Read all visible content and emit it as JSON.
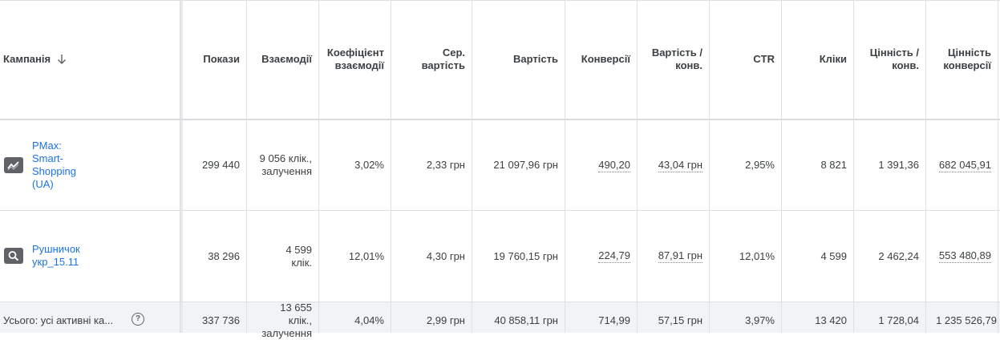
{
  "columns": {
    "campaign": "Кампанія",
    "impressions": "Покази",
    "interactions": "Взаємодії",
    "interaction_rate": "Коефіцієнт взаємодії",
    "avg_cost": "Сер. вартість",
    "cost": "Вартість",
    "conversions": "Конверсії",
    "cost_per_conv": "Вартість / конв.",
    "ctr": "CTR",
    "clicks": "Кліки",
    "value_per_conv": "Цінність / конв.",
    "conv_value": "Цінність конверсії"
  },
  "rows": [
    {
      "icon": "trend-icon",
      "campaign": "PMax: Smart-Shopping (UA)",
      "impressions": "299 440",
      "interactions": "9 056 клік., залучення",
      "interaction_rate": "3,02%",
      "avg_cost": "2,33 грн",
      "cost": "21 097,96 грн",
      "conversions": "490,20",
      "cost_per_conv": "43,04 грн",
      "ctr": "2,95%",
      "clicks": "8 821",
      "value_per_conv": "1 391,36",
      "conv_value": "682 045,91"
    },
    {
      "icon": "search-icon",
      "campaign": "Рушничок укр_15.11",
      "impressions": "38 296",
      "interactions": "4 599 клік.",
      "interaction_rate": "12,01%",
      "avg_cost": "4,30 грн",
      "cost": "19 760,15 грн",
      "conversions": "224,79",
      "cost_per_conv": "87,91 грн",
      "ctr": "12,01%",
      "clicks": "4 599",
      "value_per_conv": "2 462,24",
      "conv_value": "553 480,89"
    }
  ],
  "total": {
    "label": "Усього: усі активні ка...",
    "impressions": "337 736",
    "interactions": "13 655 клік., залучення",
    "interaction_rate": "4,04%",
    "avg_cost": "2,99 грн",
    "cost": "40 858,11 грн",
    "conversions": "714,99",
    "cost_per_conv": "57,15 грн",
    "ctr": "3,97%",
    "clicks": "13 420",
    "value_per_conv": "1 728,04",
    "conv_value": "1 235 526,79"
  }
}
